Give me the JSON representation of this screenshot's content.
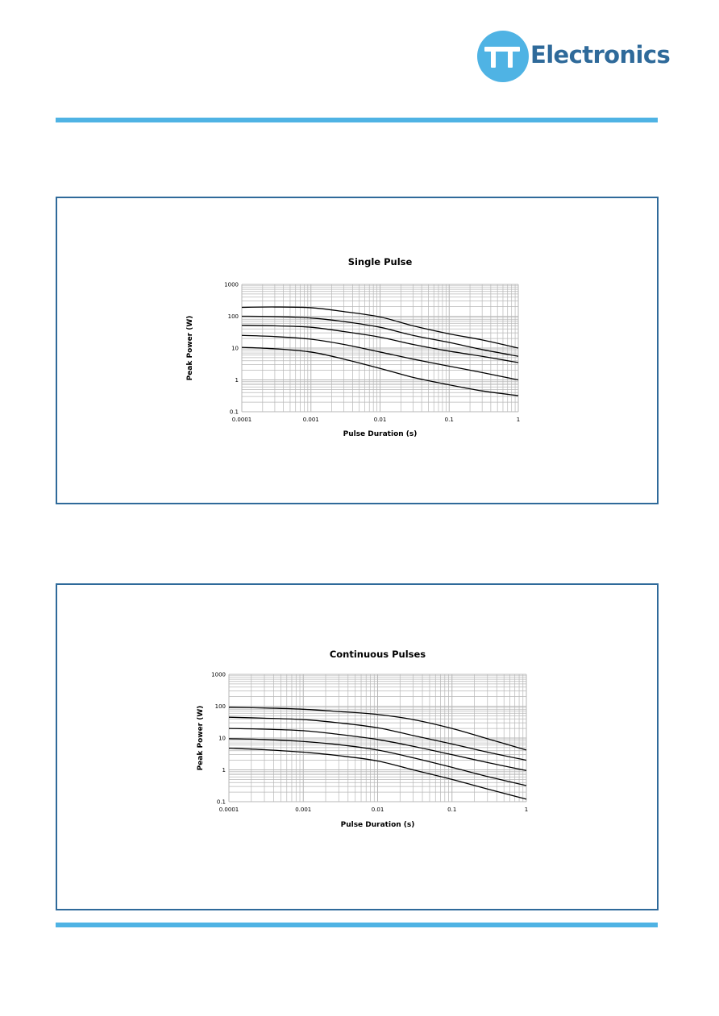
{
  "logo": {
    "text": "Electronics",
    "mark": "TT",
    "colors": {
      "circle": "#4fb3e4",
      "text": "#2f6a9a"
    }
  },
  "colors": {
    "rule": "#4fb3e4",
    "panel_border": "#2f6a9a",
    "grid": "#b7b7b7",
    "curve": "#000000"
  },
  "chart_data": [
    {
      "type": "line",
      "title": "Single Pulse",
      "xlabel": "Pulse Duration (s)",
      "ylabel": "Peak Power (W)",
      "x_scale": "log",
      "y_scale": "log",
      "xlim": [
        0.0001,
        1
      ],
      "ylim": [
        0.1,
        1000
      ],
      "xticks": [
        "0.0001",
        "0.001",
        "0.01",
        "0.1",
        "1"
      ],
      "yticks": [
        "0.1",
        "1",
        "10",
        "100",
        "1000"
      ],
      "grid": true,
      "legend": "none",
      "series": [
        {
          "x": [
            0.0001,
            0.0003,
            0.001,
            0.003,
            0.01,
            0.03,
            0.1,
            0.3,
            1
          ],
          "y": [
            190,
            195,
            185,
            140,
            95,
            50,
            28,
            18,
            10
          ]
        },
        {
          "x": [
            0.0001,
            0.0003,
            0.001,
            0.003,
            0.01,
            0.03,
            0.1,
            0.3,
            1
          ],
          "y": [
            100,
            98,
            88,
            68,
            45,
            25,
            15,
            9,
            5.5
          ]
        },
        {
          "x": [
            0.0001,
            0.0003,
            0.001,
            0.003,
            0.01,
            0.03,
            0.1,
            0.3,
            1
          ],
          "y": [
            52,
            50,
            45,
            33,
            22,
            13,
            8,
            5.5,
            3.5
          ]
        },
        {
          "x": [
            0.0001,
            0.0003,
            0.001,
            0.003,
            0.01,
            0.03,
            0.1,
            0.3,
            1
          ],
          "y": [
            25,
            23,
            19,
            13,
            7.5,
            4.5,
            2.7,
            1.7,
            1
          ]
        },
        {
          "x": [
            0.0001,
            0.0003,
            0.001,
            0.003,
            0.01,
            0.03,
            0.1,
            0.3,
            1
          ],
          "y": [
            10.5,
            9.5,
            7.5,
            4.5,
            2.3,
            1.2,
            0.7,
            0.45,
            0.32
          ]
        }
      ]
    },
    {
      "type": "line",
      "title": "Continuous Pulses",
      "xlabel": "Pulse Duration (s)",
      "ylabel": "Peak Power (W)",
      "x_scale": "log",
      "y_scale": "log",
      "xlim": [
        0.0001,
        1
      ],
      "ylim": [
        0.1,
        1000
      ],
      "xticks": [
        "0.0001",
        "0.001",
        "0.01",
        "0.1",
        "1"
      ],
      "yticks": [
        "0.1",
        "1",
        "10",
        "100",
        "1000"
      ],
      "grid": true,
      "legend": "none",
      "series": [
        {
          "x": [
            0.0001,
            0.0003,
            0.001,
            0.003,
            0.01,
            0.03,
            0.1,
            0.3,
            1
          ],
          "y": [
            92,
            88,
            80,
            68,
            55,
            38,
            20,
            9.5,
            4.2
          ]
        },
        {
          "x": [
            0.0001,
            0.0003,
            0.001,
            0.003,
            0.01,
            0.03,
            0.1,
            0.3,
            1
          ],
          "y": [
            45,
            42,
            38,
            30,
            21,
            12,
            6.5,
            3.6,
            2
          ]
        },
        {
          "x": [
            0.0001,
            0.0003,
            0.001,
            0.003,
            0.01,
            0.03,
            0.1,
            0.3,
            1
          ],
          "y": [
            20,
            19,
            17,
            13,
            9,
            5.5,
            3,
            1.7,
            0.95
          ]
        },
        {
          "x": [
            0.0001,
            0.0003,
            0.001,
            0.003,
            0.01,
            0.03,
            0.1,
            0.3,
            1
          ],
          "y": [
            9.5,
            9,
            7.8,
            6.2,
            4.2,
            2.4,
            1.2,
            0.62,
            0.32
          ]
        },
        {
          "x": [
            0.0001,
            0.0003,
            0.001,
            0.003,
            0.01,
            0.03,
            0.1,
            0.3,
            1
          ],
          "y": [
            4.8,
            4.3,
            3.6,
            2.8,
            1.9,
            1.0,
            0.5,
            0.25,
            0.12
          ]
        }
      ]
    }
  ]
}
